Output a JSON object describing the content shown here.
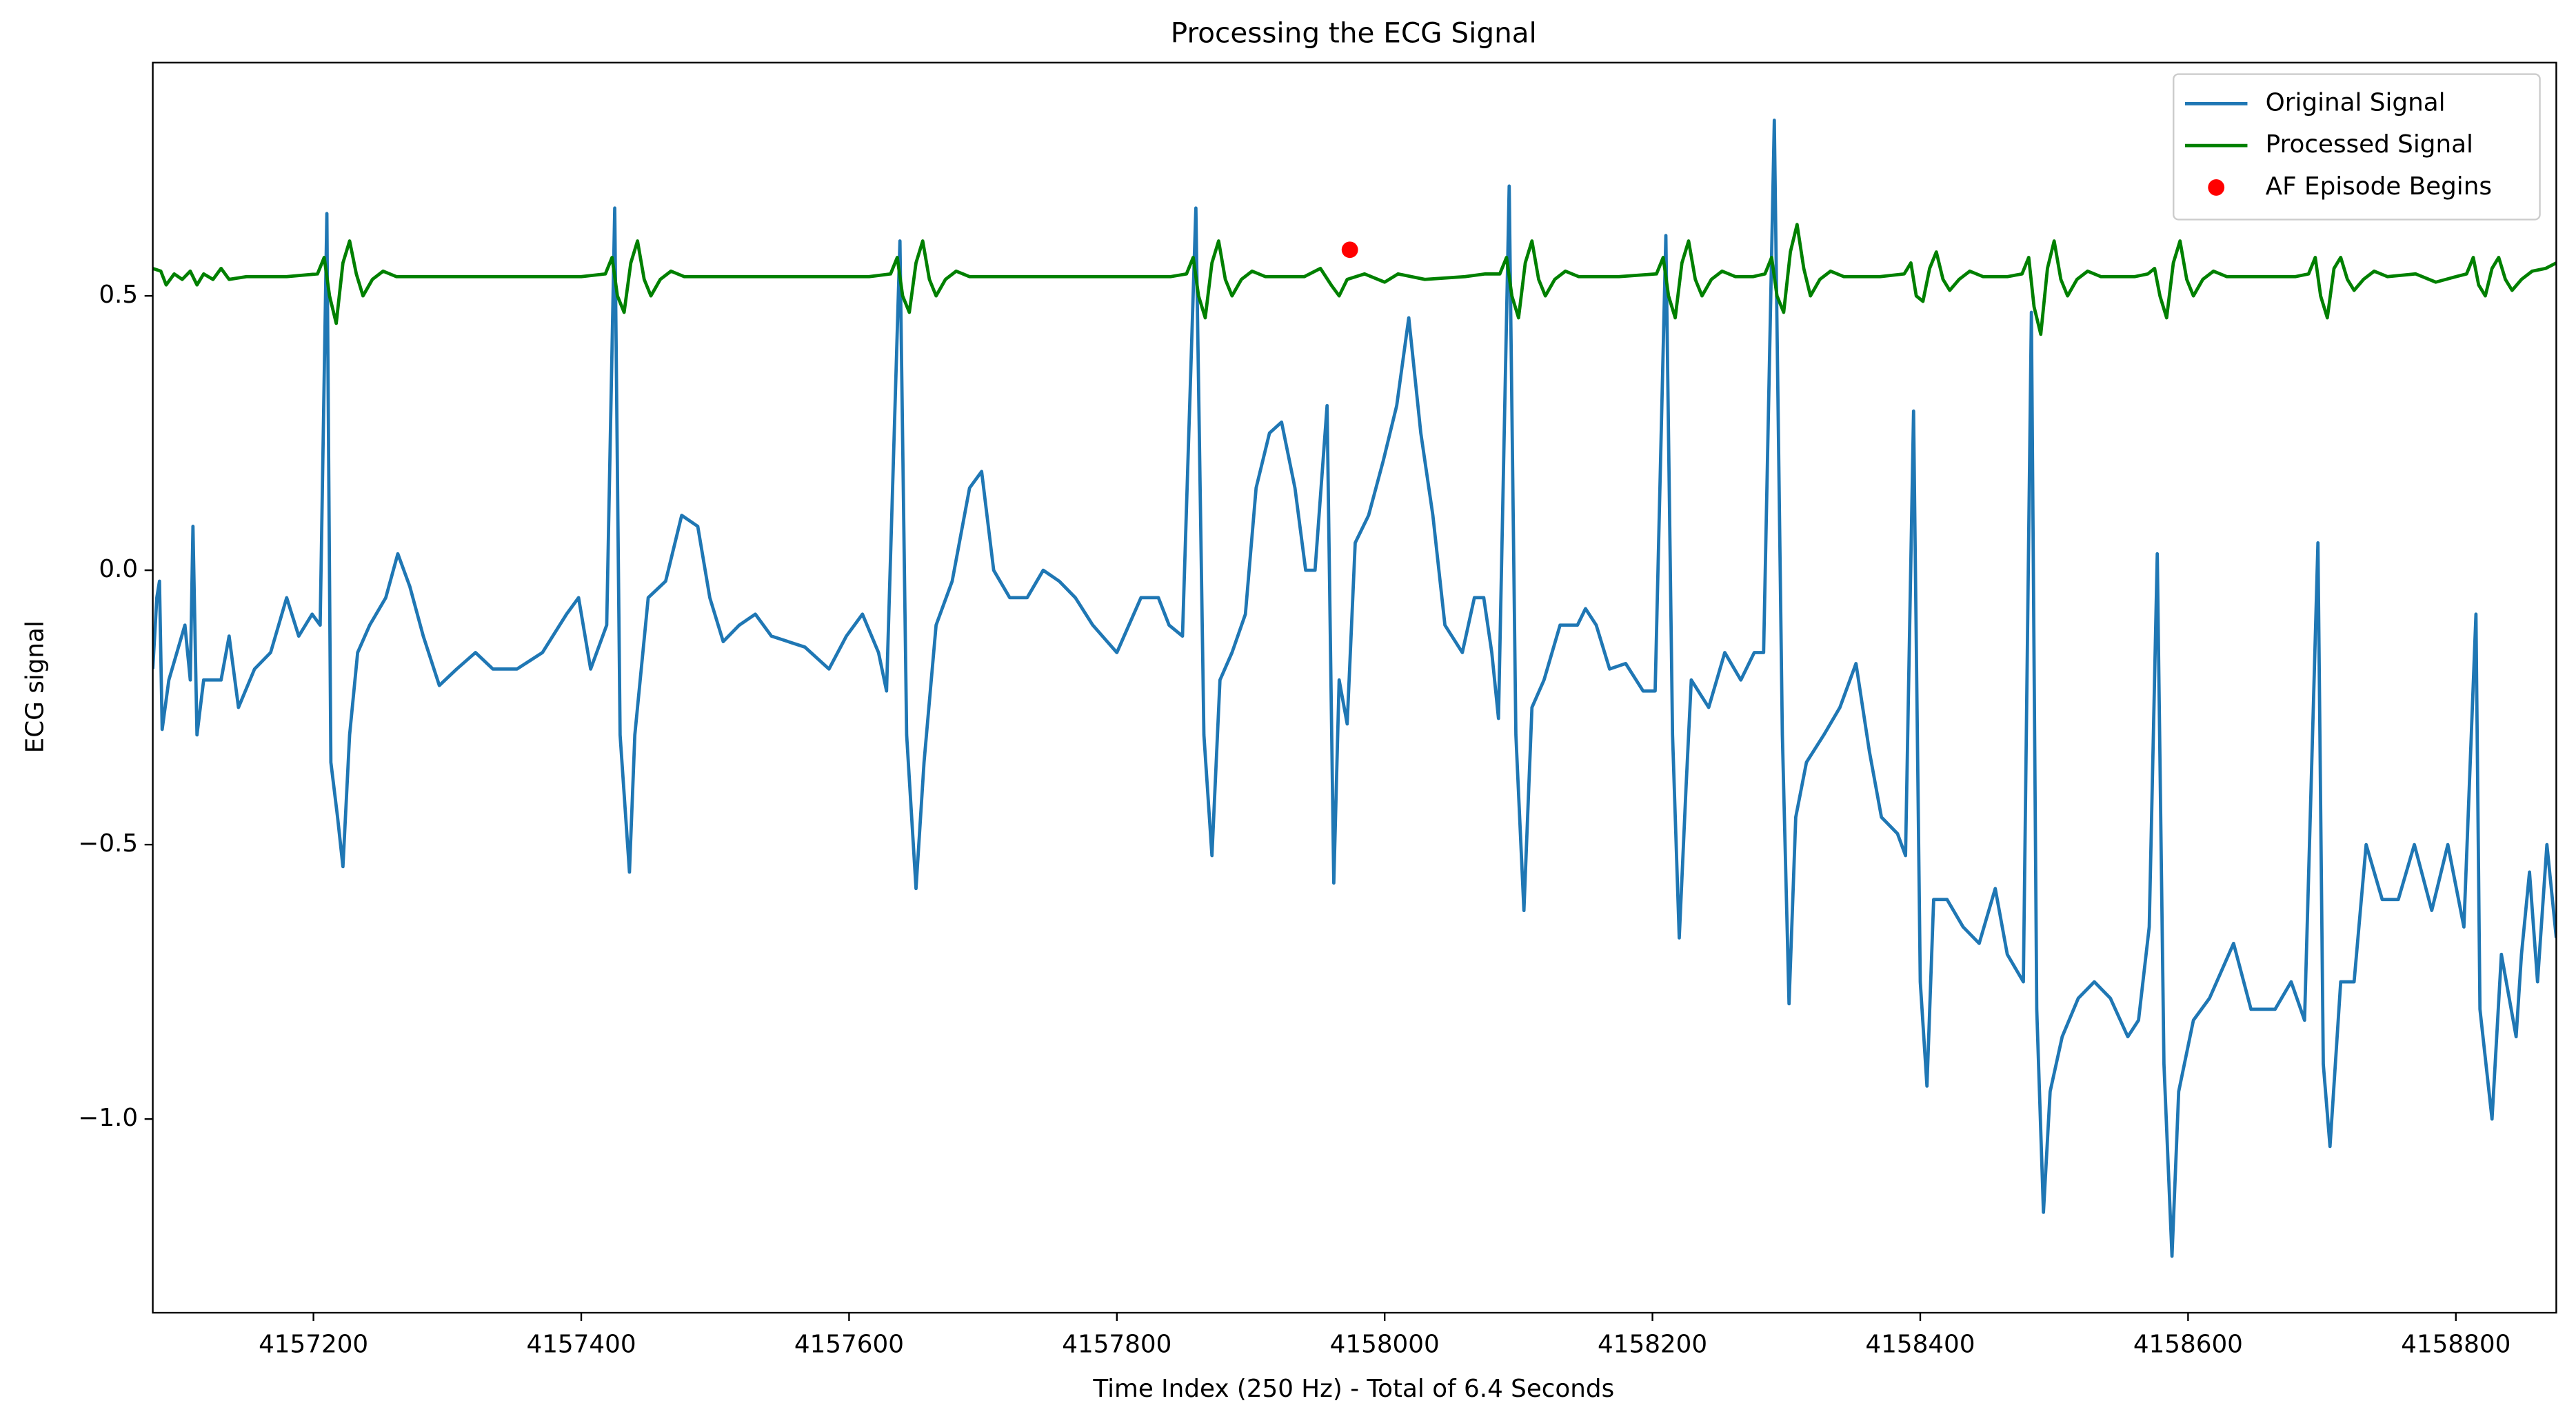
{
  "chart_data": {
    "type": "line",
    "title": "Processing the ECG Signal",
    "x_label": "Time Index (250 Hz) - Total of 6.4 Seconds",
    "y_label": "ECG signal",
    "xlim": [
      4157080,
      4158875
    ],
    "ylim": [
      -1.353,
      0.925
    ],
    "xticks": [
      4157200,
      4157400,
      4157600,
      4157800,
      4158000,
      4158200,
      4158400,
      4158600,
      4158800
    ],
    "yticks": [
      {
        "value": -1.0,
        "label": "−1.0"
      },
      {
        "value": -0.5,
        "label": "−0.5"
      },
      {
        "value": 0,
        "label": "0.0"
      },
      0.5
    ],
    "grid": false,
    "legend": "upper right",
    "series": [
      {
        "name": "Original Signal",
        "color": "#1f77b4",
        "style": "line",
        "x": [
          4157080,
          4157083,
          4157085,
          4157087,
          4157092,
          4157098,
          4157104,
          4157108,
          4157110,
          4157113,
          4157118,
          4157131,
          4157137,
          4157144,
          4157156,
          4157168,
          4157180,
          4157189,
          4157199,
          4157205,
          4157210,
          4157213,
          4157218,
          4157222,
          4157227,
          4157233,
          4157242,
          4157254,
          4157263,
          4157272,
          4157282,
          4157294,
          4157307,
          4157321,
          4157334,
          4157352,
          4157371,
          4157389,
          4157398,
          4157407,
          4157419,
          4157425,
          4157429,
          4157436,
          4157440,
          4157450,
          4157463,
          4157475,
          4157487,
          4157496,
          4157506,
          4157518,
          4157530,
          4157542,
          4157567,
          4157585,
          4157598,
          4157610,
          4157622,
          4157628,
          4157638,
          4157643,
          4157650,
          4157656,
          4157665,
          4157677,
          4157690,
          4157699,
          4157708,
          4157720,
          4157733,
          4157745,
          4157757,
          4157769,
          4157782,
          4157800,
          4157818,
          4157831,
          4157839,
          4157849,
          4157859,
          4157865,
          4157871,
          4157877,
          4157886,
          4157896,
          4157904,
          4157914,
          4157923,
          4157933,
          4157941,
          4157948,
          4157957,
          4157962,
          4157966,
          4157972,
          4157978,
          4157988,
          4157999,
          4158009,
          4158018,
          4158027,
          4158036,
          4158045,
          4158058,
          4158067,
          4158074,
          4158080,
          4158085,
          4158093,
          4158098,
          4158104,
          4158110,
          4158119,
          4158131,
          4158144,
          4158150,
          4158158,
          4158168,
          4158180,
          4158193,
          4158202,
          4158210,
          4158215,
          4158220,
          4158225,
          4158229,
          4158242,
          4158254,
          4158266,
          4158276,
          4158283,
          4158291,
          4158297,
          4158302,
          4158307,
          4158315,
          4158328,
          4158340,
          4158352,
          4158362,
          4158371,
          4158383,
          4158389,
          4158395,
          4158400,
          4158405,
          4158410,
          4158420,
          4158432,
          4158444,
          4158456,
          4158465,
          4158477,
          4158483,
          4158487,
          4158492,
          4158497,
          4158506,
          4158518,
          4158530,
          4158542,
          4158555,
          4158563,
          4158571,
          4158577,
          4158582,
          4158588,
          4158593,
          4158604,
          4158616,
          4158634,
          4158647,
          4158665,
          4158677,
          4158687,
          4158697,
          4158701,
          4158706,
          4158714,
          4158724,
          4158733,
          4158745,
          4158757,
          4158769,
          4158782,
          4158794,
          4158806,
          4158815,
          4158818,
          4158827,
          4158834,
          4158845,
          4158849,
          4158855,
          4158861,
          4158868,
          4158875
        ],
        "values": [
          -0.18,
          -0.05,
          -0.02,
          -0.29,
          -0.2,
          -0.15,
          -0.1,
          -0.2,
          0.08,
          -0.3,
          -0.2,
          -0.2,
          -0.12,
          -0.25,
          -0.18,
          -0.15,
          -0.05,
          -0.12,
          -0.08,
          -0.1,
          0.65,
          -0.35,
          -0.45,
          -0.54,
          -0.3,
          -0.15,
          -0.1,
          -0.05,
          0.03,
          -0.03,
          -0.12,
          -0.21,
          -0.18,
          -0.15,
          -0.18,
          -0.18,
          -0.15,
          -0.08,
          -0.05,
          -0.18,
          -0.1,
          0.66,
          -0.3,
          -0.55,
          -0.3,
          -0.05,
          -0.02,
          0.1,
          0.08,
          -0.05,
          -0.13,
          -0.1,
          -0.08,
          -0.12,
          -0.14,
          -0.18,
          -0.12,
          -0.08,
          -0.15,
          -0.22,
          0.6,
          -0.3,
          -0.58,
          -0.35,
          -0.1,
          -0.02,
          0.15,
          0.18,
          0.0,
          -0.05,
          -0.05,
          0.0,
          -0.02,
          -0.05,
          -0.1,
          -0.15,
          -0.05,
          -0.05,
          -0.1,
          -0.12,
          0.66,
          -0.3,
          -0.52,
          -0.2,
          -0.15,
          -0.08,
          0.15,
          0.25,
          0.27,
          0.15,
          0.0,
          0.0,
          0.3,
          -0.57,
          -0.2,
          -0.28,
          0.05,
          0.1,
          0.2,
          0.3,
          0.46,
          0.25,
          0.1,
          -0.1,
          -0.15,
          -0.05,
          -0.05,
          -0.15,
          -0.27,
          0.7,
          -0.3,
          -0.62,
          -0.25,
          -0.2,
          -0.1,
          -0.1,
          -0.07,
          -0.1,
          -0.18,
          -0.17,
          -0.22,
          -0.22,
          0.61,
          -0.3,
          -0.67,
          -0.4,
          -0.2,
          -0.25,
          -0.15,
          -0.2,
          -0.15,
          -0.15,
          0.82,
          -0.3,
          -0.79,
          -0.45,
          -0.35,
          -0.3,
          -0.25,
          -0.17,
          -0.33,
          -0.45,
          -0.48,
          -0.52,
          0.29,
          -0.75,
          -0.94,
          -0.6,
          -0.6,
          -0.65,
          -0.68,
          -0.58,
          -0.7,
          -0.75,
          0.47,
          -0.8,
          -1.17,
          -0.95,
          -0.85,
          -0.78,
          -0.75,
          -0.78,
          -0.85,
          -0.82,
          -0.65,
          0.03,
          -0.9,
          -1.25,
          -0.95,
          -0.82,
          -0.78,
          -0.68,
          -0.8,
          -0.8,
          -0.75,
          -0.82,
          0.05,
          -0.9,
          -1.05,
          -0.75,
          -0.75,
          -0.5,
          -0.6,
          -0.6,
          -0.5,
          -0.62,
          -0.5,
          -0.65,
          -0.08,
          -0.8,
          -1.0,
          -0.7,
          -0.85,
          -0.7,
          -0.55,
          -0.75,
          -0.5,
          -0.67
        ]
      },
      {
        "name": "Processed Signal",
        "color": "#008000",
        "style": "line",
        "x": [
          4157080,
          4157086,
          4157090,
          4157096,
          4157102,
          4157108,
          4157113,
          4157118,
          4157125,
          4157131,
          4157137,
          4157150,
          4157180,
          4157203,
          4157208,
          4157212,
          4157217,
          4157222,
          4157227,
          4157232,
          4157237,
          4157244,
          4157252,
          4157262,
          4157300,
          4157350,
          4157400,
          4157418,
          4157423,
          4157427,
          4157432,
          4157437,
          4157442,
          4157447,
          4157452,
          4157459,
          4157467,
          4157477,
          4157520,
          4157580,
          4157615,
          4157631,
          4157636,
          4157640,
          4157645,
          4157650,
          4157655,
          4157660,
          4157665,
          4157672,
          4157680,
          4157690,
          4157740,
          4157800,
          4157840,
          4157852,
          4157857,
          4157861,
          4157866,
          4157871,
          4157876,
          4157881,
          4157886,
          4157893,
          4157901,
          4157911,
          4157940,
          4157952,
          4157960,
          4157966,
          4157972,
          4157985,
          4158000,
          4158010,
          4158030,
          4158060,
          4158075,
          4158086,
          4158091,
          4158095,
          4158100,
          4158105,
          4158110,
          4158115,
          4158120,
          4158127,
          4158135,
          4158145,
          4158175,
          4158203,
          4158208,
          4158212,
          4158217,
          4158222,
          4158227,
          4158232,
          4158237,
          4158244,
          4158252,
          4158262,
          4158275,
          4158284,
          4158289,
          4158293,
          4158298,
          4158303,
          4158308,
          4158313,
          4158318,
          4158325,
          4158333,
          4158343,
          4158370,
          4158388,
          4158393,
          4158397,
          4158402,
          4158407,
          4158412,
          4158417,
          4158422,
          4158429,
          4158437,
          4158447,
          4158465,
          4158476,
          4158481,
          4158485,
          4158490,
          4158495,
          4158500,
          4158505,
          4158510,
          4158517,
          4158525,
          4158535,
          4158560,
          4158570,
          4158575,
          4158579,
          4158584,
          4158589,
          4158594,
          4158599,
          4158604,
          4158611,
          4158619,
          4158629,
          4158680,
          4158690,
          4158695,
          4158699,
          4158704,
          4158709,
          4158714,
          4158719,
          4158724,
          4158731,
          4158739,
          4158749,
          4158770,
          4158785,
          4158800,
          4158808,
          4158813,
          4158817,
          4158822,
          4158827,
          4158832,
          4158837,
          4158842,
          4158849,
          4158857,
          4158867,
          4158875
        ],
        "values": [
          0.55,
          0.545,
          0.52,
          0.54,
          0.53,
          0.545,
          0.52,
          0.54,
          0.53,
          0.55,
          0.53,
          0.535,
          0.535,
          0.54,
          0.57,
          0.5,
          0.45,
          0.56,
          0.6,
          0.54,
          0.5,
          0.53,
          0.545,
          0.535,
          0.535,
          0.535,
          0.535,
          0.54,
          0.57,
          0.5,
          0.47,
          0.56,
          0.6,
          0.53,
          0.5,
          0.53,
          0.545,
          0.535,
          0.535,
          0.535,
          0.535,
          0.54,
          0.57,
          0.5,
          0.47,
          0.56,
          0.6,
          0.53,
          0.5,
          0.53,
          0.545,
          0.535,
          0.535,
          0.535,
          0.535,
          0.54,
          0.57,
          0.5,
          0.46,
          0.56,
          0.6,
          0.53,
          0.5,
          0.53,
          0.545,
          0.535,
          0.535,
          0.55,
          0.52,
          0.5,
          0.53,
          0.54,
          0.525,
          0.54,
          0.53,
          0.535,
          0.54,
          0.54,
          0.57,
          0.5,
          0.46,
          0.56,
          0.6,
          0.53,
          0.5,
          0.53,
          0.545,
          0.535,
          0.535,
          0.54,
          0.57,
          0.5,
          0.46,
          0.56,
          0.6,
          0.53,
          0.5,
          0.53,
          0.545,
          0.535,
          0.535,
          0.54,
          0.57,
          0.5,
          0.47,
          0.58,
          0.63,
          0.55,
          0.5,
          0.53,
          0.545,
          0.535,
          0.535,
          0.54,
          0.56,
          0.5,
          0.49,
          0.55,
          0.58,
          0.53,
          0.51,
          0.53,
          0.545,
          0.535,
          0.535,
          0.54,
          0.57,
          0.48,
          0.43,
          0.55,
          0.6,
          0.53,
          0.5,
          0.53,
          0.545,
          0.535,
          0.535,
          0.54,
          0.55,
          0.5,
          0.46,
          0.56,
          0.6,
          0.53,
          0.5,
          0.53,
          0.545,
          0.535,
          0.535,
          0.54,
          0.57,
          0.5,
          0.46,
          0.55,
          0.57,
          0.53,
          0.51,
          0.53,
          0.545,
          0.535,
          0.54,
          0.525,
          0.535,
          0.54,
          0.57,
          0.52,
          0.5,
          0.55,
          0.57,
          0.53,
          0.51,
          0.53,
          0.545,
          0.55,
          0.56
        ]
      },
      {
        "name": "AF Episode Begins",
        "color": "#ff0000",
        "style": "dot",
        "x": [
          4157974
        ],
        "values": [
          0.584
        ]
      }
    ]
  }
}
